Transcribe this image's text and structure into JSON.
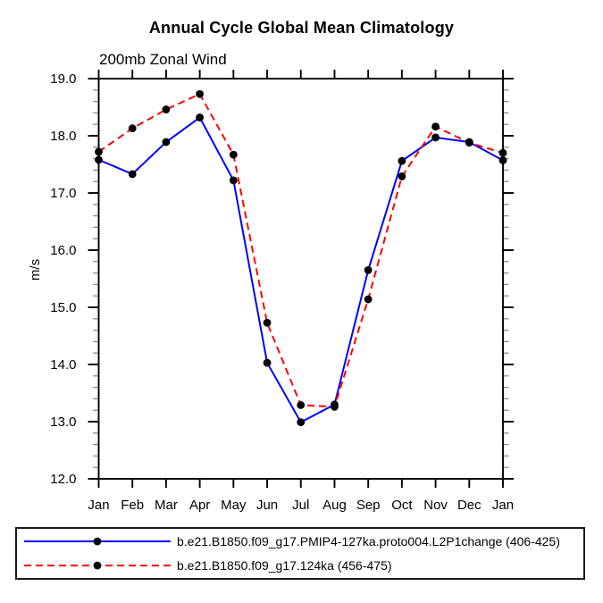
{
  "chart_data": {
    "type": "line",
    "title": "Annual Cycle Global Mean Climatology",
    "subtitle": "200mb Zonal Wind",
    "ylabel": "m/s",
    "xlabel": "",
    "categories": [
      "Jan",
      "Feb",
      "Mar",
      "Apr",
      "May",
      "Jun",
      "Jul",
      "Aug",
      "Sep",
      "Oct",
      "Nov",
      "Dec",
      "Jan"
    ],
    "ylim": [
      12.0,
      19.0
    ],
    "ytick_major_interval": 1.0,
    "ytick_minor_interval": 0.2,
    "ytick_labels": [
      "12.0",
      "13.0",
      "14.0",
      "15.0",
      "16.0",
      "17.0",
      "18.0",
      "19.0"
    ],
    "grid": false,
    "legend_position": "bottom",
    "marker": "filled-black-circle",
    "series": [
      {
        "name": "b.e21.B1850.f09_g17.PMIP4-127ka.proto004.L2P1change (406-425)",
        "color": "#0000ff",
        "style": "solid",
        "values": [
          17.58,
          17.33,
          17.89,
          18.32,
          17.22,
          14.03,
          12.99,
          13.3,
          15.65,
          17.56,
          17.97,
          17.89,
          17.57
        ]
      },
      {
        "name": "b.e21.B1850.f09_g17.124ka (456-475)",
        "color": "#ff0000",
        "style": "dashed",
        "values": [
          17.72,
          18.13,
          18.46,
          18.73,
          17.67,
          14.73,
          13.29,
          13.26,
          15.14,
          17.29,
          18.16,
          17.88,
          17.7
        ]
      }
    ],
    "colors": {
      "axis": "#000000",
      "minor_tick": "#8c8c8c",
      "marker_fill": "#000000",
      "text": "#000000"
    }
  }
}
